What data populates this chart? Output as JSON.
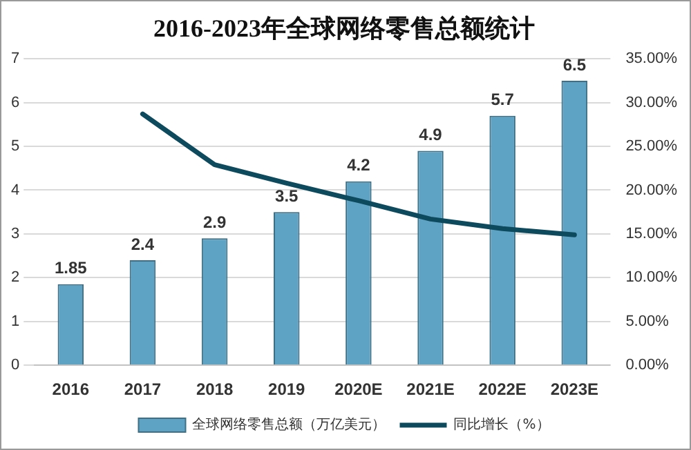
{
  "chart_data": {
    "type": "bar",
    "title": "2016-2023年全球网络零售总额统计",
    "categories": [
      "2016",
      "2017",
      "2018",
      "2019",
      "2020E",
      "2021E",
      "2022E",
      "2023E"
    ],
    "series": [
      {
        "name": "全球网络零售总额（万亿美元）",
        "color": "#5fa3c4",
        "values": [
          1.85,
          2.4,
          2.9,
          3.5,
          4.2,
          4.9,
          5.7,
          6.5
        ],
        "value_labels": [
          "1.85",
          "2.4",
          "2.9",
          "3.5",
          "4.2",
          "4.9",
          "5.7",
          "6.5"
        ]
      },
      {
        "name": "同比增长（%）",
        "type": "line",
        "axis": "y2",
        "color": "#0d4a5e",
        "values": [
          null,
          28.7,
          22.9,
          20.8,
          18.8,
          16.7,
          15.6,
          14.9
        ]
      }
    ],
    "ylim": [
      0,
      7
    ],
    "yticks": [
      0,
      1,
      2,
      3,
      4,
      5,
      6,
      7
    ],
    "y2lim": [
      0,
      35
    ],
    "y2ticks": [
      {
        "value": 0,
        "label": "0.00%"
      },
      {
        "value": 5,
        "label": "5.00%"
      },
      {
        "value": 10,
        "label": "10.00%"
      },
      {
        "value": 15,
        "label": "15.00%"
      },
      {
        "value": 20,
        "label": "20.00%"
      },
      {
        "value": 25,
        "label": "25.00%"
      },
      {
        "value": 30,
        "label": "30.00%"
      },
      {
        "value": 35,
        "label": "35.00%"
      }
    ],
    "grid": "y",
    "legend": "bottom",
    "marker": "none",
    "line_style": "solid"
  }
}
